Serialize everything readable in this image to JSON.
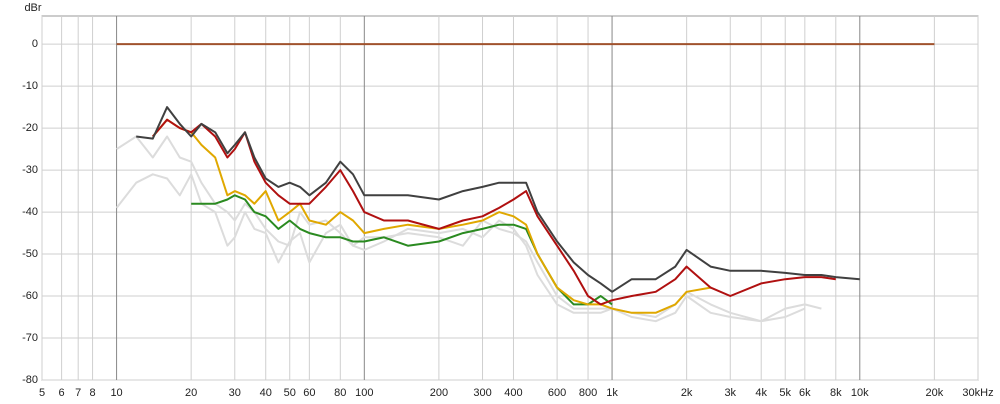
{
  "chart_data": {
    "type": "line",
    "ylabel": "dBr",
    "xscale": "log",
    "grid": true,
    "xlim": [
      5,
      30000
    ],
    "ylim": [
      -80,
      6.7
    ],
    "yticks": [
      0,
      -10,
      -20,
      -30,
      -40,
      -50,
      -60,
      -70,
      -80
    ],
    "xticks": [
      5,
      6,
      7,
      8,
      10,
      20,
      30,
      40,
      50,
      60,
      80,
      100,
      200,
      300,
      400,
      600,
      800,
      {
        "value": 1000,
        "label": "1k"
      },
      {
        "value": 2000,
        "label": "2k"
      },
      {
        "value": 3000,
        "label": "3k"
      },
      {
        "value": 4000,
        "label": "4k"
      },
      {
        "value": 5000,
        "label": "5k"
      },
      {
        "value": 6000,
        "label": "6k"
      },
      {
        "value": 8000,
        "label": "8k"
      },
      {
        "value": 10000,
        "label": "10k"
      },
      {
        "value": 20000,
        "label": "20k"
      },
      {
        "value": 30000,
        "label": "30kHz"
      }
    ],
    "x": [
      10,
      12,
      14,
      16,
      18,
      20,
      22,
      25,
      28,
      30,
      33,
      36,
      40,
      45,
      50,
      55,
      60,
      70,
      80,
      90,
      100,
      120,
      150,
      200,
      250,
      300,
      350,
      400,
      450,
      500,
      600,
      700,
      800,
      900,
      1000,
      1200,
      1500,
      1800,
      2000,
      2500,
      3000,
      4000,
      5000,
      6000,
      7000,
      8000,
      10000,
      20000
    ],
    "series": [
      {
        "color": "#dcdcdc",
        "values": [
          -25,
          -22,
          -27,
          -22,
          -27,
          -28,
          -33,
          -38,
          -40,
          -42,
          -38,
          -40,
          -44,
          -47,
          -48,
          -40,
          -43,
          -42,
          -45,
          -48,
          -46,
          -46,
          -45,
          -46,
          -48,
          -42,
          -44,
          -45,
          -47,
          -52,
          -60,
          -63,
          -63,
          -63,
          -63,
          -64,
          -65,
          -62,
          -59,
          -62,
          -64,
          -66,
          -63,
          -62,
          -63,
          null,
          null,
          null
        ]
      },
      {
        "color": "#dcdcdc",
        "values": [
          -39,
          -33,
          -31,
          -32,
          -36,
          -31,
          -38,
          -40,
          -48,
          -46,
          -40,
          -44,
          -45,
          -52,
          -47,
          -45,
          -52,
          -45,
          -43,
          -48,
          -49,
          -47,
          -44,
          -45,
          -44,
          -46,
          -42,
          -44,
          -48,
          -55,
          -62,
          -64,
          -64,
          -64,
          -63,
          -65,
          -66,
          -64,
          -60,
          -64,
          -65,
          -66,
          -65,
          -63,
          null,
          null,
          null,
          null
        ]
      },
      {
        "color": "#2a8a20",
        "values": [
          null,
          null,
          null,
          null,
          null,
          -38,
          -38,
          -38,
          -37,
          -36,
          -37,
          -40,
          -41,
          -44,
          -42,
          -44,
          -45,
          -46,
          -46,
          -47,
          -47,
          -46,
          -48,
          -47,
          -45,
          -44,
          -43,
          -43,
          -44,
          -50,
          -58,
          -62,
          -62,
          -60,
          -62,
          null,
          null,
          null,
          null,
          null,
          null,
          null,
          null,
          null,
          null,
          null,
          null,
          null
        ]
      },
      {
        "color": "#e0a800",
        "values": [
          null,
          null,
          -22,
          -18,
          -20,
          -21,
          -24,
          -27,
          -36,
          -35,
          -36,
          -38,
          -35,
          -42,
          -40,
          -38,
          -42,
          -43,
          -40,
          -42,
          -45,
          -44,
          -43,
          -44,
          -43,
          -42,
          -40,
          -41,
          -43,
          -50,
          -58,
          -61,
          -62,
          -62,
          -63,
          -64,
          -64,
          -62,
          -59,
          -58,
          null,
          null,
          null,
          null,
          null,
          null,
          null,
          null
        ]
      },
      {
        "color": "#b01010",
        "values": [
          null,
          null,
          -22,
          -18,
          -20,
          -21,
          -19,
          -22,
          -27,
          -25,
          -21,
          -28,
          -33,
          -36,
          -38,
          -38,
          -38,
          -34,
          -30,
          -35,
          -40,
          -42,
          -42,
          -44,
          -42,
          -41,
          -39,
          -37,
          -35,
          -41,
          -48,
          -54,
          -60,
          -62,
          -61,
          -60,
          -59,
          -56,
          -53,
          -58,
          -60,
          -57,
          -56,
          -55.5,
          -55.5,
          -56,
          null,
          null
        ]
      },
      {
        "color": "#404040",
        "values": [
          null,
          -22,
          -22.5,
          -15,
          -19,
          -22,
          -19,
          -21,
          -26,
          -24,
          -21,
          -27,
          -32,
          -34,
          -33,
          -34,
          -36,
          -33,
          -28,
          -31,
          -36,
          -36,
          -36,
          -37,
          -35,
          -34,
          -33,
          -33,
          -33,
          -40,
          -47,
          -52,
          -55,
          -57,
          -59,
          -56,
          -56,
          -53,
          -49,
          -53,
          -54,
          -54,
          -54.5,
          -55,
          -55,
          -55.5,
          -56,
          null
        ]
      },
      {
        "color": "#a0522d",
        "values": [
          0,
          0,
          0,
          0,
          0,
          0,
          0,
          0,
          0,
          0,
          0,
          0,
          0,
          0,
          0,
          0,
          0,
          0,
          0,
          0,
          0,
          0,
          0,
          0,
          0,
          0,
          0,
          0,
          0,
          0,
          0,
          0,
          0,
          0,
          0,
          0,
          0,
          0,
          0,
          0,
          0,
          0,
          0,
          0,
          0,
          0,
          0,
          0
        ]
      }
    ]
  }
}
